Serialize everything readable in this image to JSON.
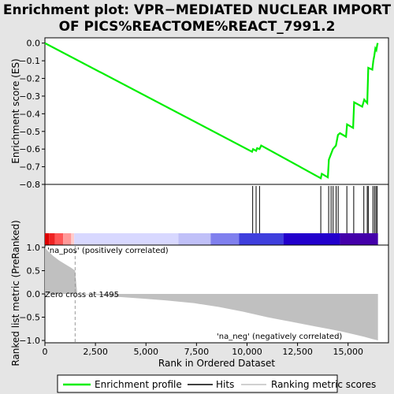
{
  "title_line1": "Enrichment plot: VPR−MEDIATED NUCLEAR IMPORT",
  "title_line2": "OF PICS%REACTOME%REACT_7991.2",
  "colors": {
    "es_line": "#00ee00",
    "hits": "#000000",
    "metric_fill": "#c0c0c0",
    "pos_label": "#cc0000",
    "neg_label": "#0000aa",
    "background": "#e5e5e5"
  },
  "chart_data": {
    "type": "line",
    "top_panel": {
      "ylabel": "Enrichment score (ES)",
      "ylim": [
        -0.8,
        0.03
      ],
      "yticks": [
        0.0,
        -0.1,
        -0.2,
        -0.3,
        -0.4,
        -0.5,
        -0.6,
        -0.7,
        -0.8
      ],
      "ytick_labels": [
        "0.0",
        "−0.1",
        "−0.2",
        "−0.3",
        "−0.4",
        "−0.5",
        "−0.6",
        "−0.7",
        "−0.8"
      ],
      "series": [
        {
          "name": "Enrichment profile",
          "x": [
            0,
            10250,
            10300,
            10450,
            10500,
            10620,
            10700,
            13650,
            13700,
            14000,
            14050,
            14150,
            14250,
            14400,
            14500,
            14600,
            14900,
            14950,
            15250,
            15300,
            15700,
            15800,
            15950,
            16000,
            16200,
            16250,
            16300,
            16350,
            16400,
            16450,
            16480
          ],
          "y": [
            0.0,
            -0.615,
            -0.6,
            -0.61,
            -0.595,
            -0.6,
            -0.58,
            -0.765,
            -0.74,
            -0.76,
            -0.66,
            -0.63,
            -0.6,
            -0.58,
            -0.52,
            -0.51,
            -0.53,
            -0.46,
            -0.48,
            -0.335,
            -0.36,
            -0.32,
            -0.34,
            -0.14,
            -0.15,
            -0.1,
            -0.07,
            -0.03,
            -0.04,
            -0.005,
            0.0
          ]
        }
      ]
    },
    "hits": [
      10280,
      10450,
      10620,
      13650,
      14040,
      14160,
      14260,
      14410,
      14510,
      14940,
      15280,
      15780,
      15950,
      16000,
      16230,
      16310,
      16380,
      16440
    ],
    "heatmap_bar": {
      "segments": [
        {
          "from": 0,
          "to": 200,
          "color": "#dd0000"
        },
        {
          "from": 200,
          "to": 500,
          "color": "#ee2222"
        },
        {
          "from": 500,
          "to": 900,
          "color": "#ff5555"
        },
        {
          "from": 900,
          "to": 1300,
          "color": "#ff9999"
        },
        {
          "from": 1300,
          "to": 1450,
          "color": "#ffcccc"
        },
        {
          "from": 1450,
          "to": 6600,
          "color": "#d8d8ff"
        },
        {
          "from": 6600,
          "to": 8200,
          "color": "#c0c0f8"
        },
        {
          "from": 8200,
          "to": 9600,
          "color": "#8080ee"
        },
        {
          "from": 9600,
          "to": 11800,
          "color": "#3f3fdd"
        },
        {
          "from": 11800,
          "to": 14600,
          "color": "#2200cc"
        },
        {
          "from": 14600,
          "to": 16480,
          "color": "#4400aa"
        }
      ]
    },
    "bottom_panel": {
      "ylabel": "Ranked list metric (PreRanked)",
      "xlabel": "Rank in Ordered Dataset",
      "xlim": [
        0,
        17000
      ],
      "xticks": [
        0,
        2500,
        5000,
        7500,
        10000,
        12500,
        15000
      ],
      "xtick_labels": [
        "0",
        "2,500",
        "5,000",
        "7,500",
        "10,000",
        "12,500",
        "15,000"
      ],
      "ylim": [
        -1.05,
        1.05
      ],
      "yticks": [
        1.0,
        0.5,
        0.0,
        -0.5,
        -1.0
      ],
      "ytick_labels": [
        "1.0",
        "0.5",
        "0.0",
        "−0.5",
        "−1.0"
      ],
      "metric_x": [
        0,
        150,
        400,
        700,
        1000,
        1300,
        1495,
        1600,
        2500,
        3500,
        4800,
        6000,
        6700,
        7400,
        8000,
        8600,
        9200,
        9800,
        10400,
        11000,
        11600,
        12200,
        12800,
        13400,
        14000,
        14600,
        15200,
        15800,
        16200,
        16480
      ],
      "metric_y": [
        1.0,
        0.92,
        0.82,
        0.72,
        0.64,
        0.56,
        0.5,
        0.0,
        -0.02,
        -0.06,
        -0.1,
        -0.14,
        -0.17,
        -0.2,
        -0.24,
        -0.28,
        -0.33,
        -0.38,
        -0.44,
        -0.5,
        -0.55,
        -0.6,
        -0.65,
        -0.7,
        -0.75,
        -0.8,
        -0.86,
        -0.92,
        -0.97,
        -1.0
      ],
      "zero_cross": 1495,
      "zero_cross_label": "Zero cross at 1495",
      "pos_label": "'na_pos' (positively correlated)",
      "neg_label": "'na_neg' (negatively correlated)"
    },
    "legend": [
      "Enrichment profile",
      "Hits",
      "Ranking metric scores"
    ]
  }
}
